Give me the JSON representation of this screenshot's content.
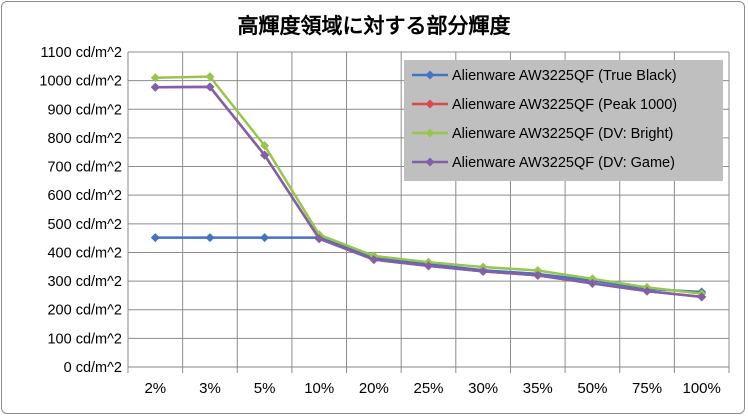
{
  "chart_data": {
    "type": "line",
    "title": "高輝度領域に対する部分輝度",
    "xlabel": "",
    "ylabel": "",
    "categories": [
      "2%",
      "3%",
      "5%",
      "10%",
      "20%",
      "25%",
      "30%",
      "35%",
      "50%",
      "75%",
      "100%"
    ],
    "ylim": [
      0,
      1100
    ],
    "yticks": [
      0,
      100,
      200,
      300,
      400,
      500,
      600,
      700,
      800,
      900,
      1000,
      1100
    ],
    "ytick_labels": [
      "0 cd/m^2",
      "100 cd/m^2",
      "200 cd/m^2",
      "300 cd/m^2",
      "400 cd/m^2",
      "500 cd/m^2",
      "600 cd/m^2",
      "700 cd/m^2",
      "800 cd/m^2",
      "900 cd/m^2",
      "1000 cd/m^2",
      "1100 cd/m^2"
    ],
    "grid": true,
    "legend_position": "top-right",
    "series": [
      {
        "name": "Alienware AW3225QF (True Black)",
        "color": "#4472c4",
        "marker": "diamond",
        "values": [
          452,
          452,
          452,
          452,
          382,
          359,
          338,
          325,
          302,
          273,
          262
        ]
      },
      {
        "name": "Alienware AW3225QF (Peak 1000)",
        "color": "#d94949",
        "marker": "diamond",
        "values": [
          977,
          978,
          740,
          448,
          375,
          353,
          334,
          320,
          292,
          265,
          245
        ]
      },
      {
        "name": "Alienware AW3225QF (DV: Bright)",
        "color": "#98c54c",
        "marker": "diamond",
        "values": [
          1010,
          1014,
          773,
          462,
          388,
          366,
          349,
          337,
          308,
          278,
          256
        ]
      },
      {
        "name": "Alienware AW3225QF (DV: Game)",
        "color": "#8060a8",
        "marker": "diamond",
        "values": [
          977,
          978,
          740,
          448,
          375,
          353,
          334,
          320,
          292,
          265,
          245
        ]
      }
    ]
  }
}
